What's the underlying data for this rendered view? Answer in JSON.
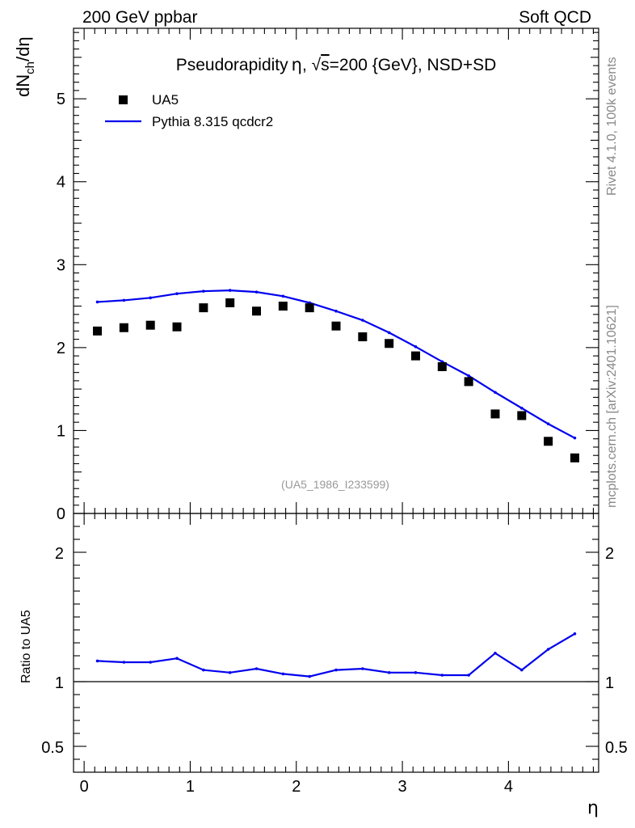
{
  "header": {
    "left": "200 GeV ppbar",
    "right": "Soft QCD"
  },
  "side_labels": {
    "rivet": "Rivet 4.1.0,  100k events",
    "mcplots": "mcplots.cern.ch [arXiv:2401.10621]"
  },
  "chart_data": {
    "type": "scatter",
    "title": "Pseudorapidity η, √s=200 {GeV}, NSD+SD",
    "title_parts": {
      "pre": "Pseudorapidity",
      "eta": "η",
      "comma": ", ",
      "sqrt": "√",
      "s": "s",
      "post": "=200 {GeV}, NSD+SD"
    },
    "xlabel": "η",
    "ylabel": {
      "base": "dN",
      "sub": "ch",
      "tail": "/dη"
    },
    "ratio_ylabel": "Ratio to UA5",
    "dataset_label": "(UA5_1986_I233599)",
    "xlim": [
      -0.1,
      4.85
    ],
    "ylim": [
      0,
      5.85
    ],
    "ratio_ylim": [
      0.3,
      2.3
    ],
    "x_ticks": [
      "0",
      "1",
      "2",
      "3",
      "4"
    ],
    "y_ticks": [
      "0",
      "1",
      "2",
      "3",
      "4",
      "5"
    ],
    "ratio_y_ticks": [
      "0.5",
      "1",
      "2"
    ],
    "legend_position": "top-left",
    "series": [
      {
        "name": "UA5",
        "style": "markers",
        "color": "#000000",
        "x": [
          0.125,
          0.375,
          0.625,
          0.875,
          1.125,
          1.375,
          1.625,
          1.875,
          2.125,
          2.375,
          2.625,
          2.875,
          3.125,
          3.375,
          3.625,
          3.875,
          4.125,
          4.375,
          4.625
        ],
        "values": [
          2.2,
          2.24,
          2.27,
          2.25,
          2.48,
          2.54,
          2.44,
          2.5,
          2.48,
          2.26,
          2.13,
          2.05,
          1.9,
          1.77,
          1.59,
          1.2,
          1.18,
          0.87,
          0.67
        ]
      },
      {
        "name": "Pythia 8.315 qcdcr2",
        "style": "line",
        "color": "#0000ee",
        "x": [
          0.125,
          0.375,
          0.625,
          0.875,
          1.125,
          1.375,
          1.625,
          1.875,
          2.125,
          2.375,
          2.625,
          2.875,
          3.125,
          3.375,
          3.625,
          3.875,
          4.125,
          4.375,
          4.625
        ],
        "values": [
          2.55,
          2.57,
          2.6,
          2.65,
          2.68,
          2.69,
          2.67,
          2.62,
          2.54,
          2.44,
          2.33,
          2.18,
          2.01,
          1.83,
          1.66,
          1.46,
          1.27,
          1.08,
          0.91
        ]
      }
    ],
    "ratio": {
      "name": "Pythia 8.315 qcdcr2 / UA5",
      "color": "#0000ee",
      "x": [
        0.125,
        0.375,
        0.625,
        0.875,
        1.125,
        1.375,
        1.625,
        1.875,
        2.125,
        2.375,
        2.625,
        2.875,
        3.125,
        3.375,
        3.625,
        3.875,
        4.125,
        4.375,
        4.625
      ],
      "values": [
        1.16,
        1.15,
        1.15,
        1.18,
        1.09,
        1.07,
        1.1,
        1.06,
        1.04,
        1.09,
        1.1,
        1.07,
        1.07,
        1.05,
        1.05,
        1.22,
        1.09,
        1.25,
        1.37
      ],
      "reference": 1
    }
  }
}
